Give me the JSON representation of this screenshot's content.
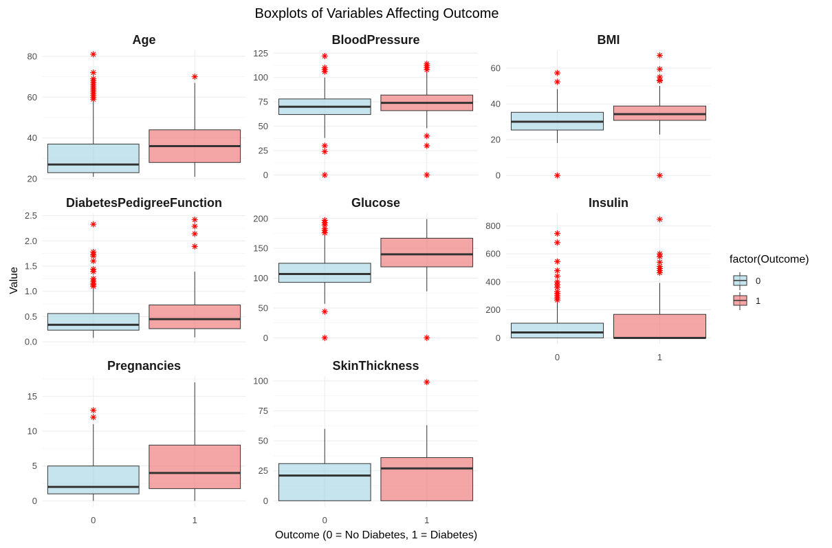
{
  "chart_data": {
    "type": "boxplot",
    "title": "Boxplots of Variables Affecting Outcome",
    "xlabel": "Outcome (0 = No Diabetes, 1 = Diabetes)",
    "ylabel": "Value",
    "legend": {
      "title": "factor(Outcome)",
      "placement": "right",
      "entries": [
        {
          "label": "0",
          "color": "#add8e6"
        },
        {
          "label": "1",
          "color": "#f08080"
        }
      ]
    },
    "categories": [
      "0",
      "1"
    ],
    "colors": {
      "0": "#add8e6",
      "1": "#f08080",
      "outlier": "#ff0000"
    },
    "facets": [
      {
        "name": "Age",
        "ylim": [
          19,
          83
        ],
        "yticks": [
          20,
          40,
          60,
          80
        ],
        "ytick_labels": [
          "20",
          "40",
          "60",
          "80"
        ],
        "groups": [
          {
            "category": "0",
            "whisker_low": 21,
            "q1": 23,
            "median": 27,
            "q3": 37,
            "whisker_high": 58,
            "outliers": [
              59,
              60,
              61,
              62,
              63,
              64,
              65,
              66,
              67,
              68,
              69,
              72,
              81
            ]
          },
          {
            "category": "1",
            "whisker_low": 21,
            "q1": 28,
            "median": 36,
            "q3": 44,
            "whisker_high": 67,
            "outliers": [
              70
            ]
          }
        ]
      },
      {
        "name": "BloodPressure",
        "ylim": [
          -6,
          128
        ],
        "yticks": [
          0,
          25,
          50,
          75,
          100,
          125
        ],
        "ytick_labels": [
          "0",
          "25",
          "50",
          "75",
          "100",
          "125"
        ],
        "groups": [
          {
            "category": "0",
            "whisker_low": 38,
            "q1": 62,
            "median": 70,
            "q3": 78,
            "whisker_high": 100,
            "outliers": [
              0,
              24,
              30,
              106,
              108,
              110,
              122
            ]
          },
          {
            "category": "1",
            "whisker_low": 48,
            "q1": 66,
            "median": 74,
            "q3": 82,
            "whisker_high": 106,
            "outliers": [
              0,
              30,
              40,
              108,
              110,
              112,
              114
            ]
          }
        ]
      },
      {
        "name": "BMI",
        "ylim": [
          -3,
          70
        ],
        "yticks": [
          0,
          20,
          40,
          60
        ],
        "ytick_labels": [
          "0",
          "20",
          "40",
          "60"
        ],
        "groups": [
          {
            "category": "0",
            "whisker_low": 18.2,
            "q1": 25.4,
            "median": 30.05,
            "q3": 35.3,
            "whisker_high": 48.3,
            "outliers": [
              0,
              52.3,
              57.3
            ]
          },
          {
            "category": "1",
            "whisker_low": 22.9,
            "q1": 30.8,
            "median": 34.25,
            "q3": 38.8,
            "whisker_high": 50,
            "outliers": [
              0,
              52.9,
              53.2,
              55,
              59.4,
              67.1
            ]
          }
        ]
      },
      {
        "name": "DiabetesPedigreeFunction",
        "ylim": [
          -0.04,
          2.55
        ],
        "yticks": [
          0.0,
          0.5,
          1.0,
          1.5,
          2.0,
          2.5
        ],
        "ytick_labels": [
          "0.0",
          "0.5",
          "1.0",
          "1.5",
          "2.0",
          "2.5"
        ],
        "groups": [
          {
            "category": "0",
            "whisker_low": 0.078,
            "q1": 0.23,
            "median": 0.336,
            "q3": 0.56,
            "whisker_high": 1.05,
            "outliers": [
              1.1,
              1.13,
              1.16,
              1.2,
              1.25,
              1.39,
              1.44,
              1.6,
              1.7,
              1.73,
              1.78,
              2.33
            ]
          },
          {
            "category": "1",
            "whisker_low": 0.088,
            "q1": 0.26,
            "median": 0.449,
            "q3": 0.73,
            "whisker_high": 1.39,
            "outliers": [
              1.89,
              2.14,
              2.29,
              2.42
            ]
          }
        ]
      },
      {
        "name": "Glucose",
        "ylim": [
          -10,
          209
        ],
        "yticks": [
          0,
          50,
          100,
          150,
          200
        ],
        "ytick_labels": [
          "0",
          "50",
          "100",
          "150",
          "200"
        ],
        "groups": [
          {
            "category": "0",
            "whisker_low": 57,
            "q1": 93,
            "median": 107,
            "q3": 125,
            "whisker_high": 172,
            "outliers": [
              0,
              44,
              176,
              180,
              183,
              189,
              193,
              197
            ]
          },
          {
            "category": "1",
            "whisker_low": 78,
            "q1": 119,
            "median": 140,
            "q3": 167,
            "whisker_high": 199,
            "outliers": [
              0
            ]
          }
        ]
      },
      {
        "name": "Insulin",
        "ylim": [
          -42,
          890
        ],
        "yticks": [
          0,
          200,
          400,
          600,
          800
        ],
        "ytick_labels": [
          "0",
          "200",
          "400",
          "600",
          "800"
        ],
        "groups": [
          {
            "category": "0",
            "whisker_low": 0,
            "q1": 0,
            "median": 39,
            "q3": 105,
            "whisker_high": 262,
            "outliers": [
              270,
              285,
              300,
              315,
              330,
              360,
              380,
              400,
              440,
              480,
              545,
              680,
              745
            ]
          },
          {
            "category": "1",
            "whisker_low": 0,
            "q1": 0,
            "median": 0,
            "q3": 168,
            "whisker_high": 392,
            "outliers": [
              465,
              480,
              495,
              510,
              540,
              580,
              600,
              846
            ]
          }
        ]
      },
      {
        "name": "Pregnancies",
        "ylim": [
          -0.85,
          17.9
        ],
        "yticks": [
          0,
          5,
          10,
          15
        ],
        "ytick_labels": [
          "0",
          "5",
          "10",
          "15"
        ],
        "groups": [
          {
            "category": "0",
            "whisker_low": 0,
            "q1": 1,
            "median": 2,
            "q3": 5,
            "whisker_high": 11,
            "outliers": [
              12,
              13
            ]
          },
          {
            "category": "1",
            "whisker_low": 0,
            "q1": 1.75,
            "median": 4,
            "q3": 8,
            "whisker_high": 17,
            "outliers": []
          }
        ]
      },
      {
        "name": "SkinThickness",
        "ylim": [
          -5,
          104
        ],
        "yticks": [
          0,
          25,
          50,
          75,
          100
        ],
        "ytick_labels": [
          "0",
          "25",
          "50",
          "75",
          "100"
        ],
        "groups": [
          {
            "category": "0",
            "whisker_low": 0,
            "q1": 0,
            "median": 21,
            "q3": 31,
            "whisker_high": 60,
            "outliers": []
          },
          {
            "category": "1",
            "whisker_low": 0,
            "q1": 0,
            "median": 27,
            "q3": 36,
            "whisker_high": 63,
            "outliers": [
              99
            ]
          }
        ]
      }
    ]
  }
}
